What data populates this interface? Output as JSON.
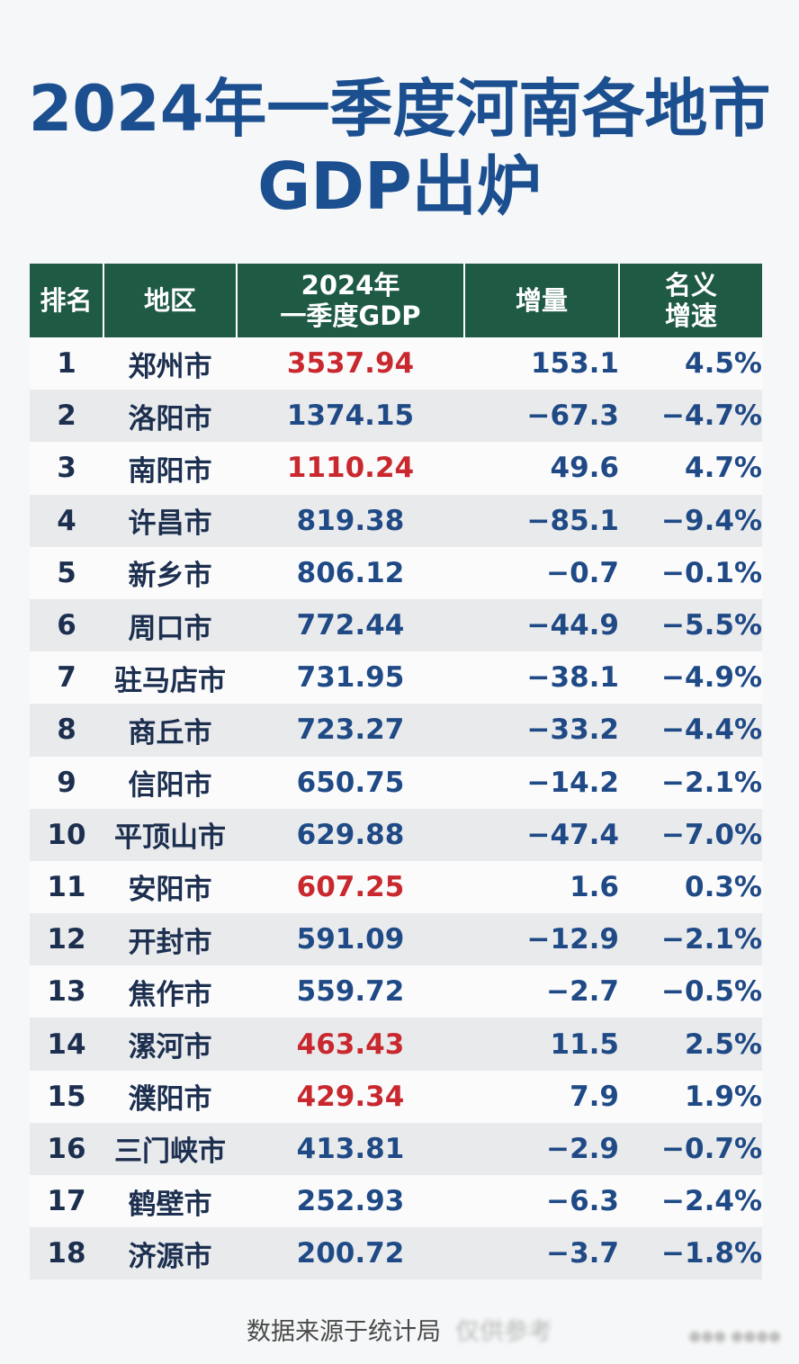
{
  "title": {
    "line1": "2024年一季度河南各地市",
    "line2": "GDP出炉"
  },
  "table": {
    "headers": {
      "rank": "排名",
      "region": "地区",
      "gdp_line1": "2024年",
      "gdp_line2": "一季度GDP",
      "increase": "增量",
      "rate_line1": "名义",
      "rate_line2": "增速"
    },
    "rows": [
      {
        "rank": "1",
        "region": "郑州市",
        "gdp": "3537.94",
        "increase": "153.1",
        "rate": "4.5%",
        "highlight": true
      },
      {
        "rank": "2",
        "region": "洛阳市",
        "gdp": "1374.15",
        "increase": "−67.3",
        "rate": "−4.7%",
        "highlight": false
      },
      {
        "rank": "3",
        "region": "南阳市",
        "gdp": "1110.24",
        "increase": "49.6",
        "rate": "4.7%",
        "highlight": true
      },
      {
        "rank": "4",
        "region": "许昌市",
        "gdp": "819.38",
        "increase": "−85.1",
        "rate": "−9.4%",
        "highlight": false
      },
      {
        "rank": "5",
        "region": "新乡市",
        "gdp": "806.12",
        "increase": "−0.7",
        "rate": "−0.1%",
        "highlight": false
      },
      {
        "rank": "6",
        "region": "周口市",
        "gdp": "772.44",
        "increase": "−44.9",
        "rate": "−5.5%",
        "highlight": false
      },
      {
        "rank": "7",
        "region": "驻马店市",
        "gdp": "731.95",
        "increase": "−38.1",
        "rate": "−4.9%",
        "highlight": false
      },
      {
        "rank": "8",
        "region": "商丘市",
        "gdp": "723.27",
        "increase": "−33.2",
        "rate": "−4.4%",
        "highlight": false
      },
      {
        "rank": "9",
        "region": "信阳市",
        "gdp": "650.75",
        "increase": "−14.2",
        "rate": "−2.1%",
        "highlight": false
      },
      {
        "rank": "10",
        "region": "平顶山市",
        "gdp": "629.88",
        "increase": "−47.4",
        "rate": "−7.0%",
        "highlight": false
      },
      {
        "rank": "11",
        "region": "安阳市",
        "gdp": "607.25",
        "increase": "1.6",
        "rate": "0.3%",
        "highlight": true
      },
      {
        "rank": "12",
        "region": "开封市",
        "gdp": "591.09",
        "increase": "−12.9",
        "rate": "−2.1%",
        "highlight": false
      },
      {
        "rank": "13",
        "region": "焦作市",
        "gdp": "559.72",
        "increase": "−2.7",
        "rate": "−0.5%",
        "highlight": false
      },
      {
        "rank": "14",
        "region": "漯河市",
        "gdp": "463.43",
        "increase": "11.5",
        "rate": "2.5%",
        "highlight": true
      },
      {
        "rank": "15",
        "region": "濮阳市",
        "gdp": "429.34",
        "increase": "7.9",
        "rate": "1.9%",
        "highlight": true
      },
      {
        "rank": "16",
        "region": "三门峡市",
        "gdp": "413.81",
        "increase": "−2.9",
        "rate": "−0.7%",
        "highlight": false
      },
      {
        "rank": "17",
        "region": "鹤壁市",
        "gdp": "252.93",
        "increase": "−6.3",
        "rate": "−2.4%",
        "highlight": false
      },
      {
        "rank": "18",
        "region": "济源市",
        "gdp": "200.72",
        "increase": "−3.7",
        "rate": "−1.8%",
        "highlight": false
      }
    ]
  },
  "footer": {
    "source": "数据来源于统计局",
    "note": "仅供参考"
  },
  "colors": {
    "title": "#1c4f8f",
    "header_bg": "#1f5a45",
    "positive_highlight": "#c8282e",
    "value_blue": "#1f4a86"
  }
}
